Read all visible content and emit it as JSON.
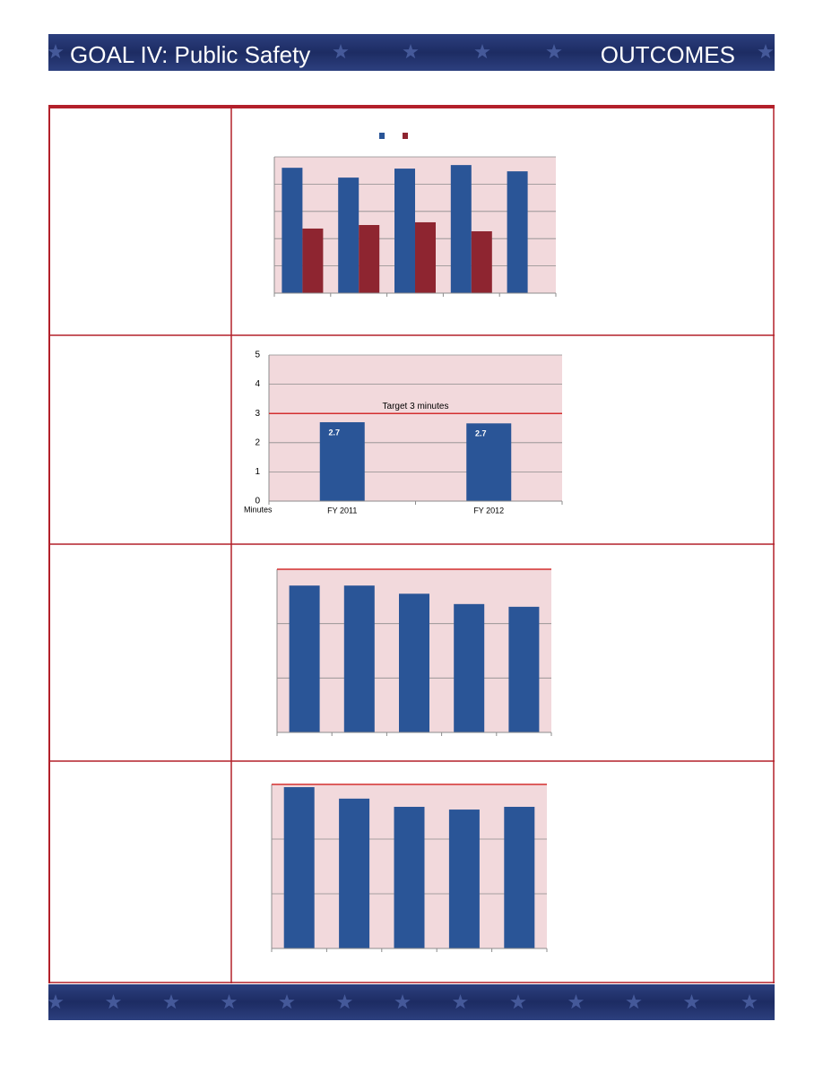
{
  "header": {
    "title": "GOAL IV: Public Safety",
    "section": "OUTCOMES"
  },
  "chart_data": [
    {
      "type": "bar",
      "categories": [
        null,
        null,
        null,
        null,
        null
      ],
      "series": [
        {
          "color": "#2a5597",
          "values": [
            4.6,
            4.24,
            4.57,
            4.7,
            4.47
          ]
        },
        {
          "color": "#8e2530",
          "values": [
            2.37,
            2.5,
            2.6,
            2.27,
            null
          ]
        }
      ],
      "ylim": [
        0,
        5
      ],
      "yticks": [
        0,
        1,
        2,
        3,
        4,
        5
      ],
      "grid": true,
      "legend": "top"
    },
    {
      "type": "bar",
      "y_label": "Minutes",
      "categories": [
        "FY 2011",
        "FY 2012"
      ],
      "series": [
        {
          "color": "#2a5597",
          "values": [
            2.7,
            2.66
          ],
          "value_labels": [
            "2.7",
            "2.7"
          ]
        }
      ],
      "ylim": [
        0,
        5
      ],
      "yticks": [
        0,
        1,
        2,
        3,
        4,
        5
      ],
      "grid": true,
      "target": 3,
      "target_label": "Target  3 minutes",
      "target_color": "#d32f2f"
    },
    {
      "type": "bar",
      "categories": [
        null,
        null,
        null,
        null,
        null
      ],
      "series": [
        {
          "color": "#2a5597",
          "values": [
            2.7,
            2.7,
            2.55,
            2.36,
            2.31
          ]
        }
      ],
      "ylim": [
        0,
        3
      ],
      "yticks": [
        0,
        1,
        2,
        3
      ],
      "grid": true,
      "target": 3,
      "target_color": "#d32f2f"
    },
    {
      "type": "bar",
      "categories": [
        null,
        null,
        null,
        null,
        null
      ],
      "series": [
        {
          "color": "#2a5597",
          "values": [
            2.95,
            2.74,
            2.59,
            2.54,
            2.59
          ]
        }
      ],
      "ylim": [
        0,
        3
      ],
      "yticks": [
        0,
        1,
        2,
        3
      ],
      "grid": true,
      "target": 3,
      "target_color": "#d32f2f"
    }
  ]
}
